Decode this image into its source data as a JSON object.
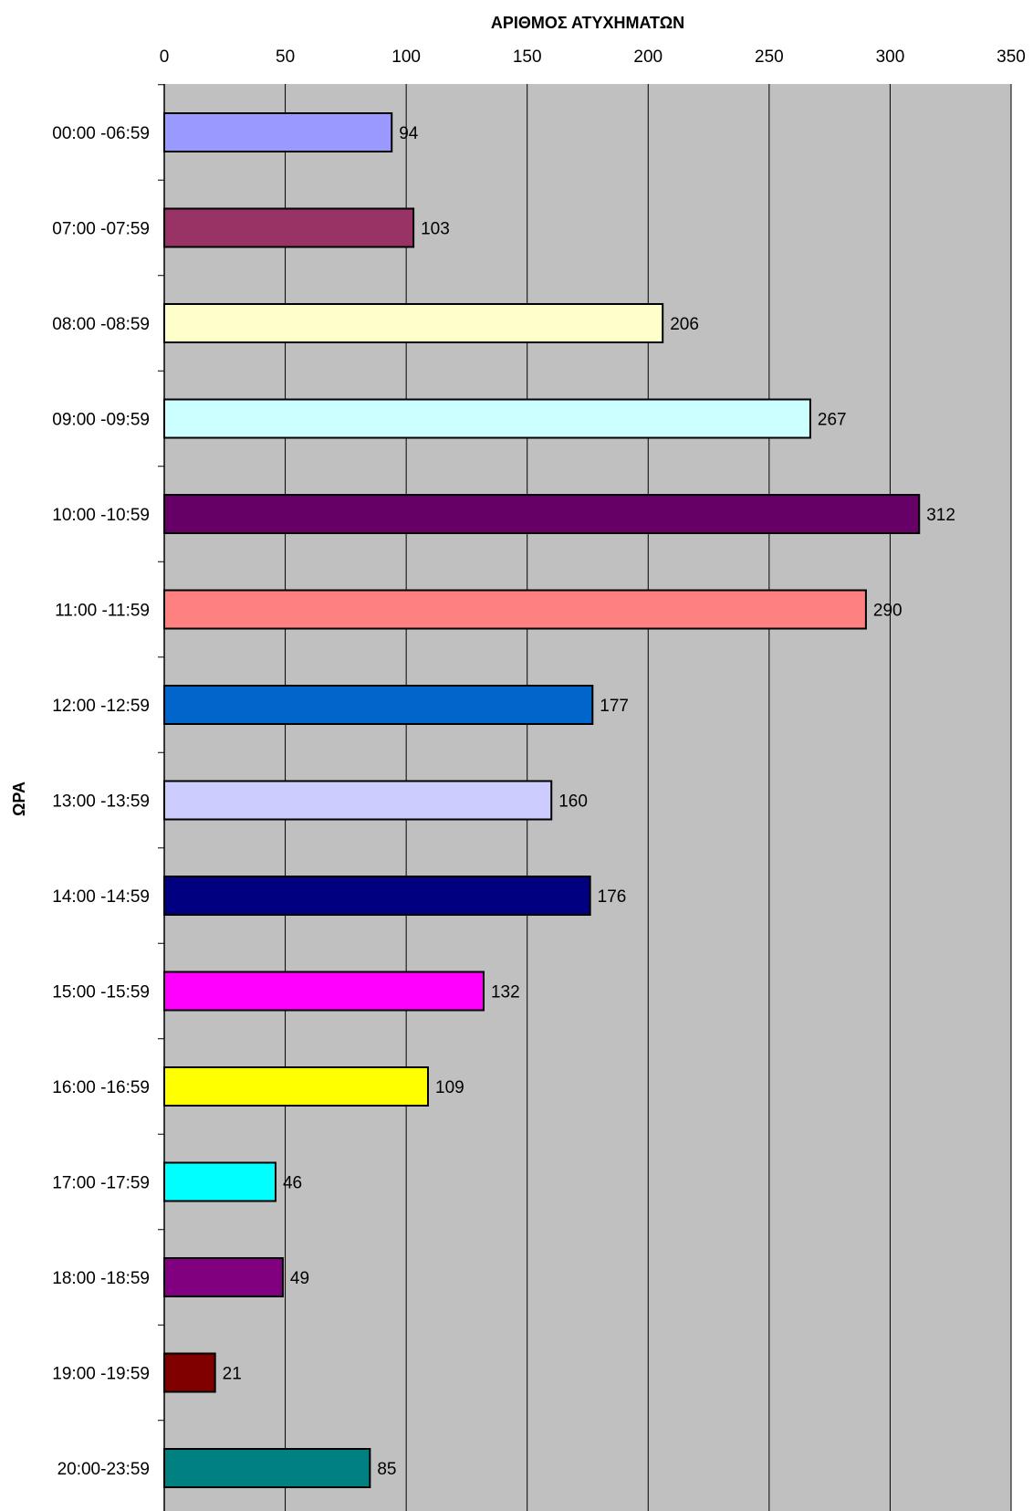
{
  "chart_data": {
    "type": "bar",
    "orientation": "horizontal",
    "title": "",
    "xlabel": "ΑΡΙΘΜΟΣ ΑΤΥΧΗΜΑΤΩΝ",
    "ylabel": "ΩΡΑ",
    "xlim": [
      0,
      350
    ],
    "xticks": [
      0,
      50,
      100,
      150,
      200,
      250,
      300,
      350
    ],
    "x_axis_position": "top",
    "grid": true,
    "legend": "none",
    "plot_background": "#c0c0c0",
    "categories": [
      "00:00 -06:59",
      "07:00 -07:59",
      "08:00 -08:59",
      "09:00 -09:59",
      "10:00 -10:59",
      "11:00 -11:59",
      "12:00 -12:59",
      "13:00 -13:59",
      "14:00 -14:59",
      "15:00 -15:59",
      "16:00 -16:59",
      "17:00 -17:59",
      "18:00 -18:59",
      "19:00 -19:59",
      "20:00-23:59"
    ],
    "values": [
      94,
      103,
      206,
      267,
      312,
      290,
      177,
      160,
      176,
      132,
      109,
      46,
      49,
      21,
      85
    ],
    "colors": [
      "#9999ff",
      "#993366",
      "#ffffcc",
      "#ccffff",
      "#660066",
      "#ff8080",
      "#0066cc",
      "#ccccff",
      "#000080",
      "#ff00ff",
      "#ffff00",
      "#00ffff",
      "#800080",
      "#800000",
      "#008080"
    ]
  }
}
